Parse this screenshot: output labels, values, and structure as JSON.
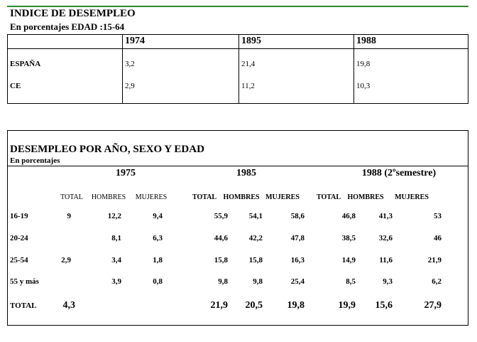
{
  "header": {
    "title": "INDICE DE DESEMPLEO",
    "subtitle": "En porcentajes  EDAD :15-64"
  },
  "table1": {
    "years": [
      "1974",
      "1895",
      "1988"
    ],
    "rows": [
      [
        "ESPAÑA",
        "3,2",
        "21,4",
        "19,8"
      ],
      [
        "CE",
        "2,9",
        "11,2",
        "10,3"
      ]
    ]
  },
  "table2": {
    "title": "DESEMPLEO POR AÑO, SEXO Y EDAD",
    "subtitle": "En porcentajes",
    "years": [
      "1975",
      "1985",
      "1988 (2ºsemestre)"
    ],
    "columns": [
      "TOTAL",
      "HOMBRES",
      "MUJERES",
      "TOTAL",
      "HOMBRES",
      "MUJERES",
      "TOTAL",
      "HOMBRES",
      "MUJERES"
    ],
    "rows": [
      [
        "16-19",
        "9",
        "12,2",
        "9,4",
        "55,9",
        "54,1",
        "58,6",
        "46,8",
        "41,3",
        "53"
      ],
      [
        "20-24",
        null,
        "8,1",
        "6,3",
        "44,6",
        "42,2",
        "47,8",
        "38,5",
        "32,6",
        "46"
      ],
      [
        "25-54",
        "2,9",
        "3,4",
        "1,8",
        "15,8",
        "15,8",
        "16,3",
        "14,9",
        "11,6",
        "21,9"
      ],
      [
        "55 y más",
        null,
        "3,9",
        "0,8",
        "9,8",
        "9,8",
        "25,4",
        "8,5",
        "9,3",
        "6,2"
      ],
      [
        "TOTAL",
        "4,3",
        null,
        null,
        "21,9",
        "20,5",
        "19,8",
        "19,9",
        "15,6",
        "27,9"
      ]
    ]
  }
}
